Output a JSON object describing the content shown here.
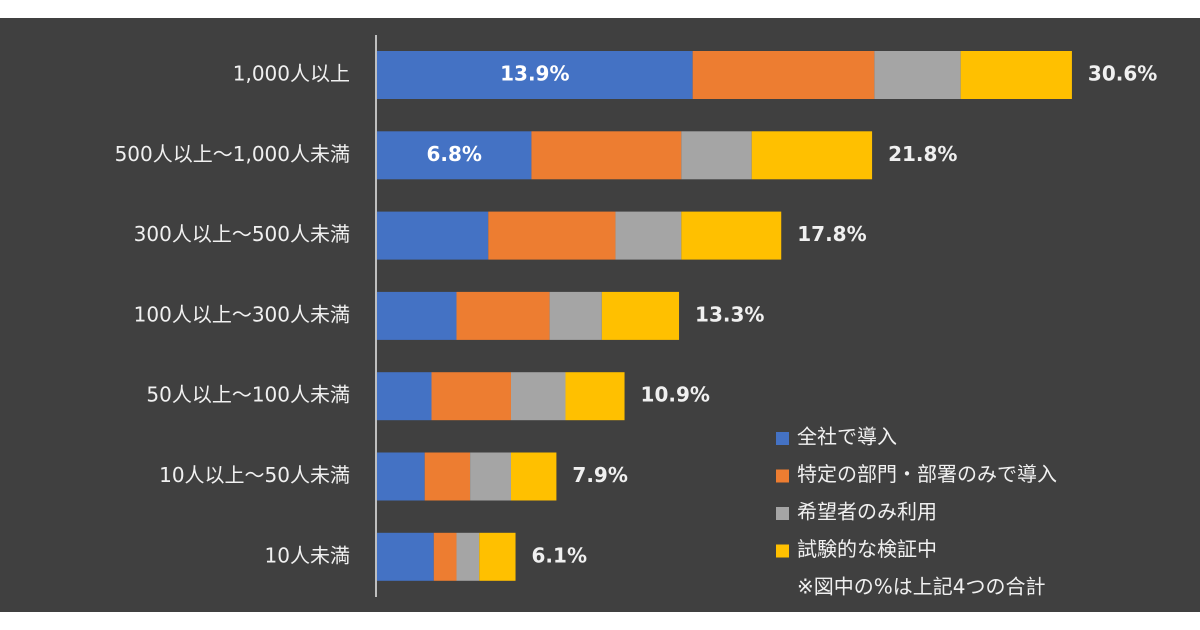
{
  "chart_data": {
    "type": "stacked_barh",
    "categories": [
      "1,000人以上",
      "500人以上～1,000人未満",
      "300人以上～500人未満",
      "100人以上～300人未満",
      "50人以上～100人未満",
      "10人以上～50人未満",
      "10人未満"
    ],
    "series": [
      {
        "name": "全社で導入",
        "color": "#4472c4",
        "values": [
          13.9,
          6.8,
          4.9,
          3.5,
          2.4,
          2.1,
          2.5
        ],
        "value_labels": [
          "13.9%",
          "6.8%",
          null,
          null,
          null,
          null,
          null
        ]
      },
      {
        "name": "特定の部門・部署のみで導入",
        "color": "#ed7d31",
        "values": [
          8.0,
          6.6,
          5.6,
          4.1,
          3.5,
          2.0,
          1.0
        ]
      },
      {
        "name": "希望者のみ利用",
        "color": "#a5a5a5",
        "values": [
          3.8,
          3.1,
          2.9,
          2.3,
          2.4,
          1.8,
          1.0
        ]
      },
      {
        "name": "試験的な検証中",
        "color": "#ffc000",
        "values": [
          4.9,
          5.3,
          4.4,
          3.4,
          2.6,
          2.0,
          1.6
        ]
      }
    ],
    "totals": [
      30.6,
      21.8,
      17.8,
      13.3,
      10.9,
      7.9,
      6.1
    ],
    "total_labels": [
      "30.6%",
      "21.8%",
      "17.8%",
      "13.3%",
      "10.9%",
      "7.9%",
      "6.1%"
    ],
    "note": "※図中の%は上記4つの合計",
    "xlim": [
      0,
      31
    ],
    "legend": "lower-right"
  }
}
